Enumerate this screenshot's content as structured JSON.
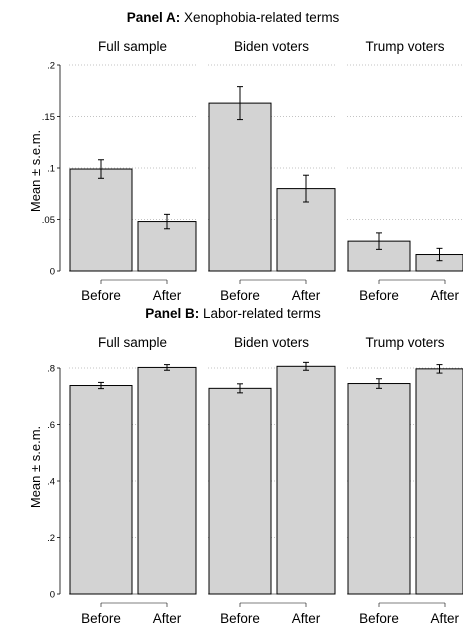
{
  "chart_data": [
    {
      "type": "bar",
      "panel_label": "Panel A:",
      "title": "Xenophobia-related terms",
      "ylabel": "Mean ± s.e.m.",
      "ylim": [
        0,
        0.2
      ],
      "yticks": [
        0,
        0.05,
        0.1,
        0.15,
        0.2
      ],
      "ytick_labels": [
        "0",
        ".05",
        ".1",
        ".15",
        ".2"
      ],
      "grid": true,
      "categories": [
        "Before",
        "After"
      ],
      "facets": [
        {
          "name": "Full sample",
          "values": [
            0.099,
            0.048
          ],
          "sem": [
            0.009,
            0.007
          ]
        },
        {
          "name": "Biden voters",
          "values": [
            0.163,
            0.08
          ],
          "sem": [
            0.016,
            0.013
          ]
        },
        {
          "name": "Trump voters",
          "values": [
            0.029,
            0.016
          ],
          "sem": [
            0.008,
            0.006
          ]
        }
      ]
    },
    {
      "type": "bar",
      "panel_label": "Panel B:",
      "title": "Labor-related terms",
      "ylabel": "Mean ± s.e.m.",
      "ylim": [
        0,
        0.8
      ],
      "yticks": [
        0,
        0.2,
        0.4,
        0.6,
        0.8
      ],
      "ytick_labels": [
        "0",
        ".2",
        ".4",
        ".6",
        ".8"
      ],
      "grid": true,
      "categories": [
        "Before",
        "After"
      ],
      "facets": [
        {
          "name": "Full sample",
          "values": [
            0.738,
            0.802
          ],
          "sem": [
            0.011,
            0.01
          ]
        },
        {
          "name": "Biden voters",
          "values": [
            0.728,
            0.806
          ],
          "sem": [
            0.016,
            0.014
          ]
        },
        {
          "name": "Trump voters",
          "values": [
            0.745,
            0.797
          ],
          "sem": [
            0.017,
            0.015
          ]
        }
      ]
    }
  ],
  "colors": {
    "bar_fill": "#d3d3d3",
    "bar_edge": "#000000",
    "grid": "#b0b0b0",
    "error_bar": "#000000"
  }
}
